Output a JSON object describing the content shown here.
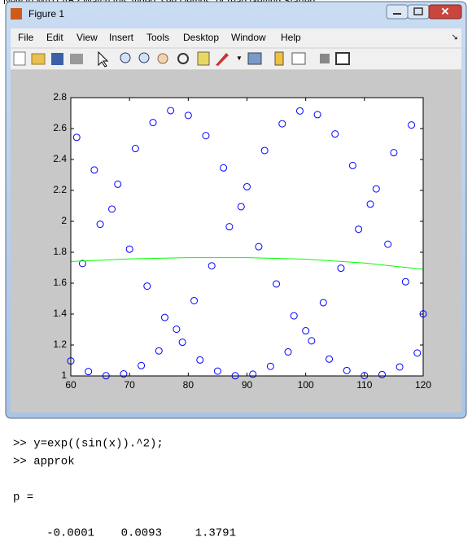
{
  "banner": "New to MATLAB? Watch this Video, see Demos, or read Getting Started.",
  "window": {
    "title": "Figure 1",
    "menu": [
      "File",
      "Edit",
      "View",
      "Insert",
      "Tools",
      "Desktop",
      "Window",
      "Help"
    ]
  },
  "chart_data": {
    "type": "scatter",
    "xlim": [
      60,
      120
    ],
    "xticks": [
      60,
      70,
      80,
      90,
      100,
      110,
      120
    ],
    "ylim": [
      1,
      2.8
    ],
    "yticks": [
      1,
      1.2,
      1.4,
      1.6,
      1.8,
      2,
      2.2,
      2.4,
      2.6,
      2.8
    ],
    "grid": false,
    "series": [
      {
        "type": "scatter",
        "color": "#0000ff",
        "x": [
          60,
          61,
          62,
          63,
          64,
          65,
          66,
          67,
          68,
          69,
          70,
          71,
          72,
          73,
          74,
          75,
          76,
          77,
          78,
          79,
          80,
          81,
          82,
          83,
          84,
          85,
          86,
          87,
          88,
          89,
          90,
          91,
          92,
          93,
          94,
          95,
          96,
          97,
          98,
          99,
          100,
          101,
          102,
          103,
          104,
          105,
          106,
          107,
          108,
          109,
          110,
          111,
          112,
          113,
          114,
          115,
          116,
          117,
          118,
          119,
          120
        ],
        "values": [
          1.097,
          2.543,
          1.727,
          1.028,
          2.332,
          1.981,
          1.001,
          2.079,
          2.24,
          1.013,
          1.82,
          2.471,
          1.067,
          1.581,
          2.639,
          1.162,
          1.378,
          2.716,
          1.302,
          1.218,
          2.685,
          1.487,
          1.103,
          2.554,
          1.712,
          1.031,
          2.346,
          1.965,
          1.001,
          2.095,
          2.224,
          1.011,
          1.836,
          2.458,
          1.062,
          1.595,
          2.631,
          1.155,
          1.389,
          2.714,
          1.292,
          1.227,
          2.69,
          1.474,
          1.109,
          2.565,
          1.697,
          1.035,
          2.361,
          1.949,
          1.002,
          2.111,
          2.21,
          1.009,
          1.852,
          2.444,
          1.058,
          1.609,
          2.623,
          1.148,
          1.401
        ]
      },
      {
        "type": "line",
        "color": "#00ff00",
        "x": [
          60,
          70,
          80,
          90,
          100,
          110,
          120
        ],
        "values": [
          1.74,
          1.757,
          1.765,
          1.765,
          1.755,
          1.73,
          1.69
        ]
      }
    ]
  },
  "console": {
    "lines": [
      ">> y=exp((sin(x)).^2);",
      ">> approk",
      "p ="
    ],
    "coefficients": [
      -0.0001,
      0.0093,
      1.3791
    ]
  }
}
